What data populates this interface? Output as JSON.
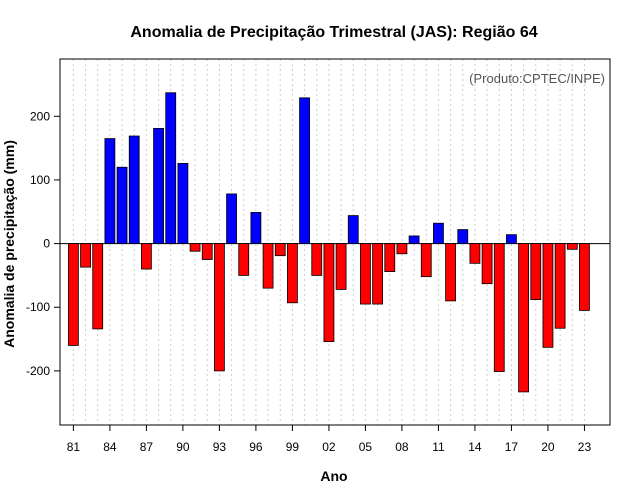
{
  "chart_data": {
    "type": "bar",
    "title": "Anomalia de Precipitação Trimestral (JAS): Região 64",
    "credit": "(Produto:CPTEC/INPE)",
    "xlabel": "Ano",
    "ylabel": "Anomalia de precipitação (mm)",
    "ylim": [
      -285,
      290
    ],
    "yticks": [
      -200,
      -100,
      0,
      100,
      200
    ],
    "xlim": [
      1979.9,
      2025.1
    ],
    "x_tick_labels": [
      {
        "year": 1981,
        "label": "81"
      },
      {
        "year": 1984,
        "label": "84"
      },
      {
        "year": 1987,
        "label": "87"
      },
      {
        "year": 1990,
        "label": "90"
      },
      {
        "year": 1993,
        "label": "93"
      },
      {
        "year": 1996,
        "label": "96"
      },
      {
        "year": 1999,
        "label": "99"
      },
      {
        "year": 2002,
        "label": "02"
      },
      {
        "year": 2005,
        "label": "05"
      },
      {
        "year": 2008,
        "label": "08"
      },
      {
        "year": 2011,
        "label": "11"
      },
      {
        "year": 2014,
        "label": "14"
      },
      {
        "year": 2017,
        "label": "17"
      },
      {
        "year": 2020,
        "label": "20"
      },
      {
        "year": 2023,
        "label": "23"
      }
    ],
    "colors": {
      "positive": "#0000ff",
      "negative": "#ff0000",
      "grid": "#cccccc"
    },
    "grid": true,
    "years": [
      1981,
      1982,
      1983,
      1984,
      1985,
      1986,
      1987,
      1988,
      1989,
      1990,
      1991,
      1992,
      1993,
      1994,
      1995,
      1996,
      1997,
      1998,
      1999,
      2000,
      2001,
      2002,
      2003,
      2004,
      2005,
      2006,
      2007,
      2008,
      2009,
      2010,
      2011,
      2012,
      2013,
      2014,
      2015,
      2016,
      2017,
      2018,
      2019,
      2020,
      2021,
      2022,
      2023
    ],
    "values": [
      -160,
      -37,
      -134,
      165,
      120,
      169,
      -40,
      181,
      237,
      126,
      -12,
      -25,
      -200,
      78,
      -50,
      49,
      -70,
      -19,
      -93,
      229,
      -50,
      -154,
      -72,
      44,
      -95,
      -95,
      -44,
      -16,
      12,
      -52,
      32,
      -90,
      22,
      -31,
      -63,
      -201,
      14,
      -233,
      -88,
      -163,
      -133,
      -9,
      -105
    ]
  }
}
